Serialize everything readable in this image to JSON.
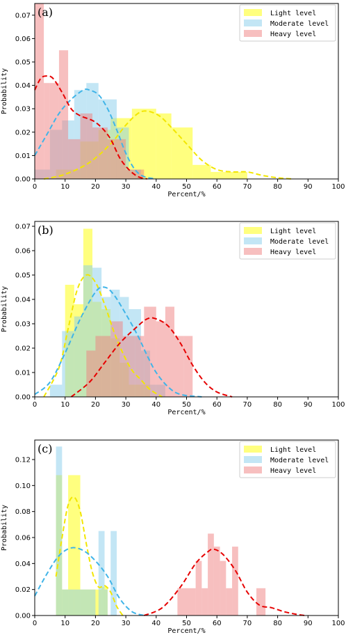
{
  "chart_data": [
    {
      "type": "histogram+kde",
      "panel_label": "(a)",
      "xlabel": "Percent/%",
      "ylabel": "Probability",
      "xlim": [
        0,
        100
      ],
      "ylim": [
        0,
        0.075
      ],
      "xticks": [
        "0",
        "10",
        "20",
        "30",
        "40",
        "50",
        "60",
        "70",
        "80",
        "90",
        "100"
      ],
      "yticks": [
        "0.00",
        "0.01",
        "0.02",
        "0.03",
        "0.04",
        "0.05",
        "0.06",
        "0.07"
      ],
      "legend": {
        "placement": "top-right",
        "entries": [
          "Light level",
          "Moderate level",
          "Heavy level"
        ]
      },
      "series": [
        {
          "name": "Light level",
          "color": "#ffff00",
          "line_color": "#f2e600",
          "bins": [
            [
              2,
              7,
              0.0
            ],
            [
              7,
              15,
              0.004
            ],
            [
              15,
              21,
              0.016
            ],
            [
              21,
              25,
              0.021
            ],
            [
              25,
              32,
              0.026
            ],
            [
              32,
              40,
              0.03
            ],
            [
              40,
              45,
              0.028
            ],
            [
              45,
              52,
              0.022
            ],
            [
              52,
              58,
              0.006
            ],
            [
              58,
              70,
              0.003
            ]
          ],
          "kde": [
            [
              3,
              0.0
            ],
            [
              10,
              0.002
            ],
            [
              18,
              0.007
            ],
            [
              25,
              0.015
            ],
            [
              30,
              0.023
            ],
            [
              34,
              0.028
            ],
            [
              37,
              0.029
            ],
            [
              41,
              0.027
            ],
            [
              45,
              0.022
            ],
            [
              50,
              0.015
            ],
            [
              55,
              0.008
            ],
            [
              60,
              0.004
            ],
            [
              65,
              0.003
            ],
            [
              70,
              0.003
            ],
            [
              75,
              0.0015
            ],
            [
              80,
              0.0005
            ],
            [
              85,
              0.0
            ]
          ]
        },
        {
          "name": "Moderate level",
          "color": "#87ceeb",
          "line_color": "#3fb4e8",
          "bins": [
            [
              0,
              5,
              0.004
            ],
            [
              5,
              9,
              0.021
            ],
            [
              9,
              13,
              0.025
            ],
            [
              13,
              17,
              0.038
            ],
            [
              17,
              21,
              0.041
            ],
            [
              21,
              27,
              0.034
            ],
            [
              27,
              31,
              0.022
            ],
            [
              31,
              35,
              0.004
            ]
          ],
          "kde": [
            [
              0,
              0.01
            ],
            [
              4,
              0.019
            ],
            [
              8,
              0.028
            ],
            [
              12,
              0.034
            ],
            [
              16,
              0.038
            ],
            [
              18,
              0.038
            ],
            [
              21,
              0.036
            ],
            [
              24,
              0.03
            ],
            [
              27,
              0.021
            ],
            [
              30,
              0.011
            ],
            [
              33,
              0.004
            ],
            [
              36,
              0.001
            ],
            [
              40,
              0.0
            ]
          ]
        },
        {
          "name": "Heavy level",
          "color": "#f08080",
          "line_color": "#e60000",
          "bins": [
            [
              0,
              3,
              0.075
            ],
            [
              3,
              5,
              0.041
            ],
            [
              5,
              8,
              0.041
            ],
            [
              8,
              11,
              0.055
            ],
            [
              11,
              15,
              0.017
            ],
            [
              15,
              19,
              0.028
            ],
            [
              19,
              24,
              0.022
            ],
            [
              24,
              30,
              0.017
            ],
            [
              30,
              36,
              0.004
            ]
          ],
          "kde": [
            [
              0,
              0.038
            ],
            [
              2,
              0.043
            ],
            [
              4,
              0.044
            ],
            [
              6,
              0.043
            ],
            [
              9,
              0.037
            ],
            [
              12,
              0.03
            ],
            [
              15,
              0.027
            ],
            [
              19,
              0.025
            ],
            [
              22,
              0.022
            ],
            [
              25,
              0.017
            ],
            [
              28,
              0.009
            ],
            [
              31,
              0.004
            ],
            [
              34,
              0.001
            ],
            [
              37,
              0.0
            ]
          ]
        }
      ]
    },
    {
      "type": "histogram+kde",
      "panel_label": "(b)",
      "xlabel": "Percent/%",
      "ylabel": "Probability",
      "xlim": [
        0,
        100
      ],
      "ylim": [
        0,
        0.072
      ],
      "xticks": [
        "0",
        "10",
        "20",
        "30",
        "40",
        "50",
        "60",
        "70",
        "80",
        "90",
        "100"
      ],
      "yticks": [
        "0.00",
        "0.01",
        "0.02",
        "0.03",
        "0.04",
        "0.05",
        "0.06",
        "0.07"
      ],
      "legend": {
        "placement": "top-right",
        "entries": [
          "Light level",
          "Moderate level",
          "Heavy level"
        ]
      },
      "series": [
        {
          "name": "Light level",
          "color": "#ffff00",
          "line_color": "#f2e600",
          "bins": [
            [
              10,
              13,
              0.046
            ],
            [
              13,
              16,
              0.038
            ],
            [
              16,
              19,
              0.069
            ],
            [
              19,
              22,
              0.039
            ],
            [
              22,
              25,
              0.036
            ],
            [
              25,
              28,
              0.024
            ],
            [
              28,
              31,
              0.014
            ],
            [
              31,
              38,
              0.005
            ]
          ],
          "kde": [
            [
              3,
              0.0
            ],
            [
              8,
              0.012
            ],
            [
              11,
              0.028
            ],
            [
              14,
              0.044
            ],
            [
              17,
              0.05
            ],
            [
              20,
              0.047
            ],
            [
              23,
              0.038
            ],
            [
              26,
              0.027
            ],
            [
              29,
              0.018
            ],
            [
              32,
              0.011
            ],
            [
              35,
              0.007
            ],
            [
              38,
              0.003
            ],
            [
              42,
              0.0
            ]
          ]
        },
        {
          "name": "Moderate level",
          "color": "#87ceeb",
          "line_color": "#3fb4e8",
          "bins": [
            [
              5,
              9,
              0.005
            ],
            [
              9,
              13,
              0.027
            ],
            [
              13,
              16,
              0.033
            ],
            [
              16,
              19,
              0.054
            ],
            [
              19,
              22,
              0.053
            ],
            [
              22,
              25,
              0.041
            ],
            [
              25,
              28,
              0.044
            ],
            [
              28,
              31,
              0.041
            ],
            [
              31,
              35,
              0.036
            ],
            [
              35,
              38,
              0.019
            ],
            [
              38,
              43,
              0.005
            ]
          ],
          "kde": [
            [
              0,
              0.001
            ],
            [
              5,
              0.006
            ],
            [
              10,
              0.018
            ],
            [
              15,
              0.032
            ],
            [
              20,
              0.043
            ],
            [
              23,
              0.045
            ],
            [
              26,
              0.042
            ],
            [
              30,
              0.034
            ],
            [
              34,
              0.025
            ],
            [
              37,
              0.017
            ],
            [
              40,
              0.01
            ],
            [
              44,
              0.004
            ],
            [
              48,
              0.001
            ],
            [
              55,
              0.0
            ]
          ]
        },
        {
          "name": "Heavy level",
          "color": "#f08080",
          "line_color": "#e60000",
          "bins": [
            [
              17,
              20,
              0.019
            ],
            [
              20,
              25,
              0.025
            ],
            [
              25,
              29,
              0.031
            ],
            [
              29,
              33,
              0.025
            ],
            [
              33,
              36,
              0.025
            ],
            [
              36,
              40,
              0.037
            ],
            [
              40,
              43,
              0.031
            ],
            [
              43,
              46,
              0.037
            ],
            [
              46,
              49,
              0.025
            ],
            [
              49,
              52,
              0.025
            ]
          ],
          "kde": [
            [
              12,
              0.0
            ],
            [
              18,
              0.006
            ],
            [
              23,
              0.014
            ],
            [
              28,
              0.022
            ],
            [
              33,
              0.028
            ],
            [
              37,
              0.032
            ],
            [
              40,
              0.032
            ],
            [
              44,
              0.029
            ],
            [
              48,
              0.022
            ],
            [
              52,
              0.013
            ],
            [
              56,
              0.006
            ],
            [
              60,
              0.002
            ],
            [
              65,
              0.0
            ]
          ]
        }
      ]
    },
    {
      "type": "histogram+kde",
      "panel_label": "(c)",
      "xlabel": "Percent/%",
      "ylabel": "Probability",
      "xlim": [
        0,
        100
      ],
      "ylim": [
        0,
        0.135
      ],
      "xticks": [
        "0",
        "10",
        "20",
        "30",
        "40",
        "50",
        "60",
        "70",
        "80",
        "90",
        "100"
      ],
      "yticks": [
        "0.00",
        "0.02",
        "0.04",
        "0.06",
        "0.08",
        "0.10",
        "0.12"
      ],
      "legend": {
        "placement": "top-right",
        "entries": [
          "Light level",
          "Moderate level",
          "Heavy level"
        ]
      },
      "series": [
        {
          "name": "Light level",
          "color": "#ffff00",
          "line_color": "#f2e600",
          "bins": [
            [
              7,
              9,
              0.108
            ],
            [
              9,
              11,
              0.02
            ],
            [
              11,
              15,
              0.108
            ],
            [
              15,
              19,
              0.02
            ],
            [
              19,
              22,
              0.02
            ],
            [
              22,
              24,
              0.022
            ]
          ],
          "kde": [
            [
              7,
              0.03
            ],
            [
              9,
              0.06
            ],
            [
              11,
              0.085
            ],
            [
              13,
              0.091
            ],
            [
              15,
              0.08
            ],
            [
              17,
              0.055
            ],
            [
              19,
              0.033
            ],
            [
              21,
              0.022
            ],
            [
              23,
              0.023
            ],
            [
              25,
              0.018
            ],
            [
              27,
              0.007
            ],
            [
              29,
              0.0
            ]
          ]
        },
        {
          "name": "Moderate level",
          "color": "#87ceeb",
          "line_color": "#3fb4e8",
          "bins": [
            [
              7,
              9,
              0.13
            ],
            [
              9,
              11,
              0.02
            ],
            [
              11,
              13,
              0.02
            ],
            [
              13,
              20,
              0.02
            ],
            [
              21,
              23,
              0.065
            ],
            [
              23,
              24,
              0.02
            ],
            [
              25,
              27,
              0.065
            ]
          ],
          "kde": [
            [
              0,
              0.015
            ],
            [
              4,
              0.032
            ],
            [
              8,
              0.046
            ],
            [
              12,
              0.052
            ],
            [
              16,
              0.05
            ],
            [
              20,
              0.042
            ],
            [
              24,
              0.03
            ],
            [
              28,
              0.013
            ],
            [
              32,
              0.003
            ],
            [
              36,
              0.0
            ]
          ]
        },
        {
          "name": "Heavy level",
          "color": "#f08080",
          "line_color": "#e60000",
          "bins": [
            [
              47,
              50,
              0.021
            ],
            [
              50,
              53,
              0.021
            ],
            [
              53,
              55,
              0.042
            ],
            [
              55,
              57,
              0.021
            ],
            [
              57,
              59,
              0.063
            ],
            [
              59,
              61,
              0.053
            ],
            [
              61,
              63,
              0.042
            ],
            [
              63,
              65,
              0.021
            ],
            [
              65,
              67,
              0.053
            ],
            [
              67,
              69,
              0.0
            ],
            [
              73,
              76,
              0.021
            ]
          ],
          "kde": [
            [
              36,
              0.0
            ],
            [
              42,
              0.006
            ],
            [
              48,
              0.022
            ],
            [
              53,
              0.04
            ],
            [
              57,
              0.049
            ],
            [
              59,
              0.051
            ],
            [
              62,
              0.047
            ],
            [
              66,
              0.035
            ],
            [
              70,
              0.018
            ],
            [
              74,
              0.008
            ],
            [
              78,
              0.006
            ],
            [
              82,
              0.003
            ],
            [
              86,
              0.001
            ],
            [
              89,
              0.0
            ]
          ]
        }
      ]
    }
  ]
}
